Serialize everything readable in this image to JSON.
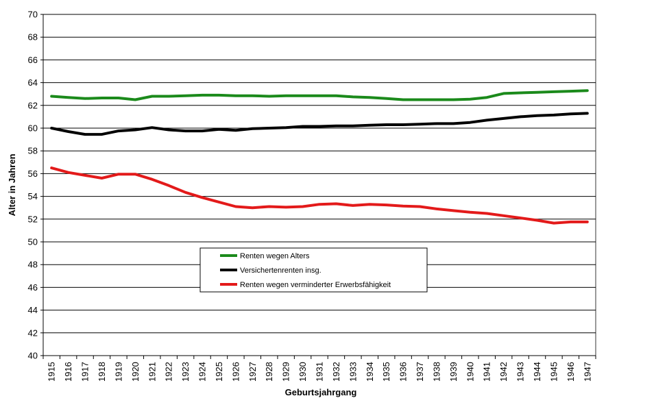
{
  "chart_data": {
    "type": "line",
    "title": "",
    "xlabel": "Geburtsjahrgang",
    "ylabel": "Alter in Jahren",
    "ylim": [
      40,
      70
    ],
    "yticks": [
      40,
      42,
      44,
      46,
      48,
      50,
      52,
      54,
      56,
      58,
      60,
      62,
      64,
      66,
      68,
      70
    ],
    "grid": "horizontal",
    "legend_position": "center-bottom",
    "categories": [
      "1915",
      "1916",
      "1917",
      "1918",
      "1919",
      "1920",
      "1921",
      "1922",
      "1923",
      "1924",
      "1925",
      "1926",
      "1927",
      "1928",
      "1929",
      "1930",
      "1931",
      "1932",
      "1933",
      "1934",
      "1935",
      "1936",
      "1937",
      "1938",
      "1939",
      "1940",
      "1941",
      "1942",
      "1943",
      "1944",
      "1945",
      "1946",
      "1947"
    ],
    "series": [
      {
        "name": "Renten wegen Alters",
        "color": "#1b8a1b",
        "values": [
          62.8,
          62.7,
          62.6,
          62.65,
          62.65,
          62.5,
          62.8,
          62.8,
          62.85,
          62.9,
          62.9,
          62.85,
          62.85,
          62.8,
          62.85,
          62.85,
          62.85,
          62.85,
          62.75,
          62.7,
          62.6,
          62.5,
          62.5,
          62.5,
          62.5,
          62.55,
          62.7,
          63.05,
          63.1,
          63.15,
          63.2,
          63.25,
          63.3
        ]
      },
      {
        "name": "Versichertenrenten insg.",
        "color": "#000000",
        "values": [
          60.0,
          59.7,
          59.45,
          59.45,
          59.75,
          59.85,
          60.05,
          59.85,
          59.75,
          59.75,
          59.9,
          59.8,
          59.95,
          60.0,
          60.05,
          60.15,
          60.15,
          60.2,
          60.2,
          60.25,
          60.3,
          60.3,
          60.35,
          60.4,
          60.4,
          60.5,
          60.7,
          60.85,
          61.0,
          61.1,
          61.15,
          61.25,
          61.3
        ]
      },
      {
        "name": "Renten wegen verminderter Erwerbsfähigkeit",
        "color": "#e31a1a",
        "values": [
          56.5,
          56.1,
          55.85,
          55.6,
          55.95,
          55.95,
          55.5,
          54.95,
          54.35,
          53.9,
          53.5,
          53.1,
          53.0,
          53.1,
          53.05,
          53.1,
          53.3,
          53.35,
          53.2,
          53.3,
          53.25,
          53.15,
          53.1,
          52.9,
          52.75,
          52.6,
          52.5,
          52.3,
          52.1,
          51.9,
          51.65,
          51.75,
          51.75
        ]
      }
    ]
  }
}
